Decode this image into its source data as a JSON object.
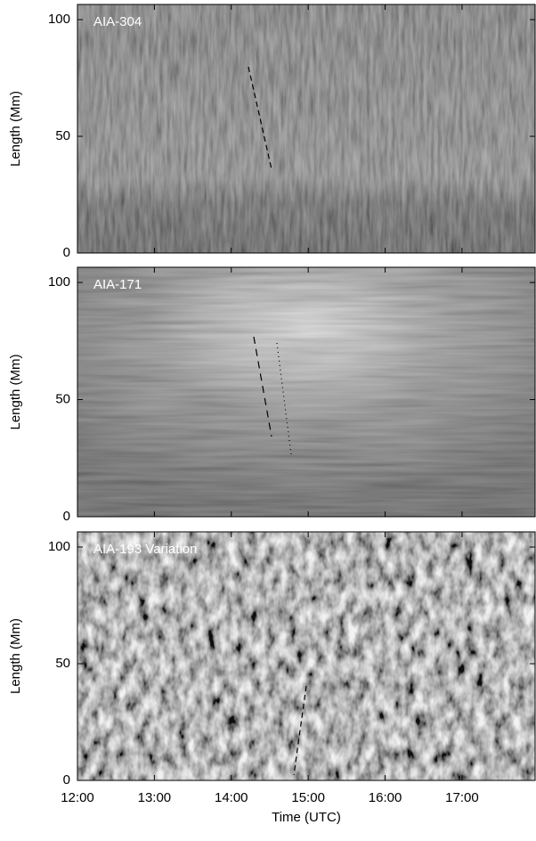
{
  "chart_data": [
    {
      "type": "image",
      "title": "AIA-304",
      "ylabel": "Length (Mm)",
      "ylim": [
        0,
        106.5
      ],
      "yticks": [
        0,
        50,
        100
      ]
    },
    {
      "type": "image",
      "title": "AIA-171",
      "ylabel": "Length (Mm)",
      "ylim": [
        0,
        106.5
      ],
      "yticks": [
        0,
        50,
        100
      ]
    },
    {
      "type": "image",
      "title": "AIA-193 Variation",
      "ylabel": "Length (Mm)",
      "xlabel": "Time (UTC)",
      "ylim": [
        0,
        106.5
      ],
      "yticks": [
        0,
        50,
        100
      ],
      "xlim": [
        12,
        17.95
      ],
      "xticks": [
        {
          "value": 12,
          "label": "12:00"
        },
        {
          "value": 13,
          "label": "13:00"
        },
        {
          "value": 14,
          "label": "14:00"
        },
        {
          "value": 15,
          "label": "15:00"
        },
        {
          "value": 16,
          "label": "16:00"
        },
        {
          "value": 17,
          "label": "17:00"
        }
      ]
    }
  ]
}
